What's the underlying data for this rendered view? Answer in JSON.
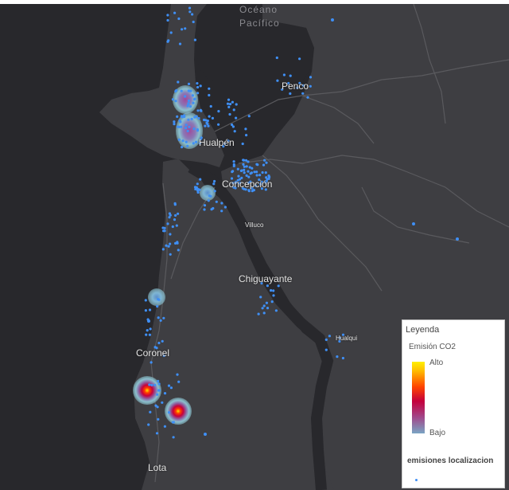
{
  "places": {
    "oceano": "Océano",
    "pacifico": "Pacífico",
    "penco": "Penco",
    "hualpen": "Hualpén",
    "concepcion": "Concepción",
    "villuco": "Villuco",
    "chiguayante": "Chiguayante",
    "hualqui": "Hualqui",
    "coronel": "Coronel",
    "lota": "Lota"
  },
  "legend": {
    "title": "Leyenda",
    "heatmap_layer": "Emisión CO2",
    "high_label": "Alto",
    "low_label": "Bajo",
    "points_layer": "emisiones localizacion"
  },
  "colors": {
    "land": "#3e3e42",
    "water": "#28282c",
    "point": "#3f8ff5",
    "heat_low": "#8fc8d6",
    "heat_high": "#ffe000"
  }
}
